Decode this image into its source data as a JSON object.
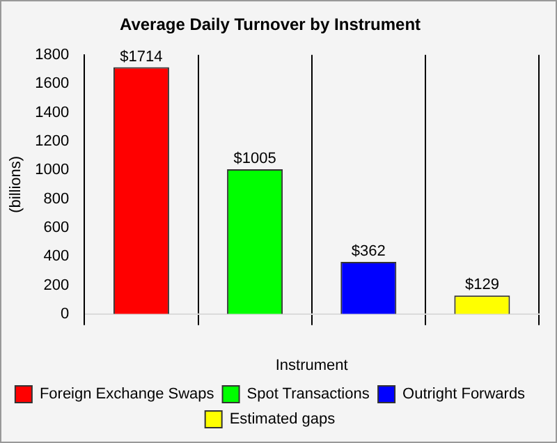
{
  "chart_data": {
    "type": "bar",
    "title": "Average Daily Turnover by Instrument",
    "xlabel": "Instrument",
    "ylabel": "(billions)",
    "categories": [
      null,
      null,
      null,
      null
    ],
    "series": [
      {
        "name": "Foreign Exchange Swaps",
        "color": "#ff0000",
        "values": [
          1714,
          null,
          null,
          null
        ],
        "value_labels": [
          "$1714",
          null,
          null,
          null
        ]
      },
      {
        "name": "Spot Transactions",
        "color": "#00ff00",
        "values": [
          null,
          1005,
          null,
          null
        ],
        "value_labels": [
          null,
          "$1005",
          null,
          null
        ]
      },
      {
        "name": "Outright Forwards",
        "color": "#0000ff",
        "values": [
          null,
          null,
          362,
          null
        ],
        "value_labels": [
          null,
          null,
          "$362",
          null
        ]
      },
      {
        "name": "Estimated gaps",
        "color": "#ffff00",
        "values": [
          null,
          null,
          null,
          129
        ],
        "value_labels": [
          null,
          null,
          null,
          "$129"
        ]
      }
    ],
    "ylim": [
      0,
      1800
    ],
    "yticks": [
      0,
      200,
      400,
      600,
      800,
      1000,
      1200,
      1400,
      1600,
      1800
    ],
    "grid": "x",
    "legend": "bottom"
  }
}
